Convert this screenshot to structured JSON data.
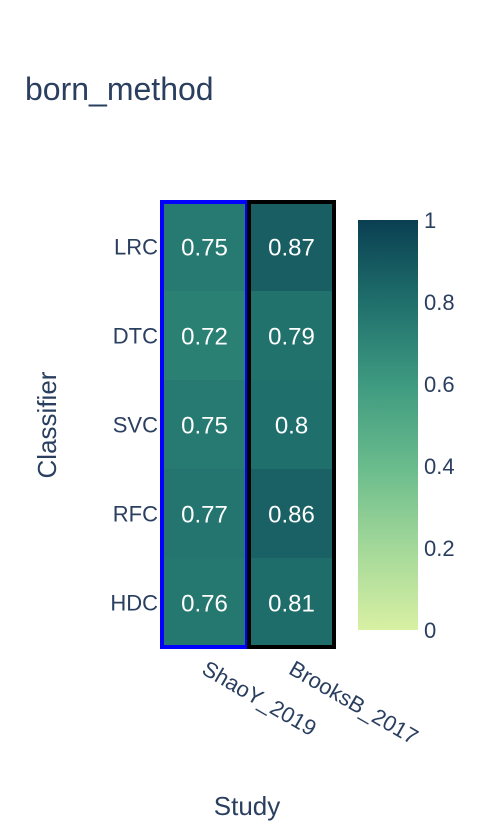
{
  "chart_data": {
    "type": "heatmap",
    "title": "born_method",
    "xlabel": "Study",
    "ylabel": "Classifier",
    "x_categories": [
      "ShaoY_2019",
      "BrooksB_2017"
    ],
    "y_categories": [
      "LRC",
      "DTC",
      "SVC",
      "RFC",
      "HDC"
    ],
    "values": [
      [
        0.75,
        0.87
      ],
      [
        0.72,
        0.79
      ],
      [
        0.75,
        0.8
      ],
      [
        0.77,
        0.86
      ],
      [
        0.76,
        0.81
      ]
    ],
    "value_labels": [
      [
        "0.75",
        "0.87"
      ],
      [
        "0.72",
        "0.79"
      ],
      [
        "0.75",
        "0.8"
      ],
      [
        "0.77",
        "0.86"
      ],
      [
        "0.76",
        "0.81"
      ]
    ],
    "colorscale": {
      "range": [
        0,
        1
      ],
      "ticks": [
        0,
        0.2,
        0.4,
        0.6,
        0.8,
        1
      ],
      "tick_labels": [
        "0",
        "0.2",
        "0.4",
        "0.6",
        "0.8",
        "1"
      ],
      "stops": [
        [
          0.0,
          "#d8f0a3"
        ],
        [
          0.2,
          "#a3d899"
        ],
        [
          0.4,
          "#69bb8c"
        ],
        [
          0.6,
          "#3e9a80"
        ],
        [
          0.8,
          "#1f6f6c"
        ],
        [
          1.0,
          "#0a3f52"
        ]
      ]
    },
    "highlight_columns": [
      {
        "category": "ShaoY_2019",
        "color": "#0000ff"
      },
      {
        "category": "BrooksB_2017",
        "color": "#000000"
      }
    ],
    "text_color": "#ffffff",
    "axis_text_color": "#2a3f5f",
    "background": "#ffffff"
  }
}
